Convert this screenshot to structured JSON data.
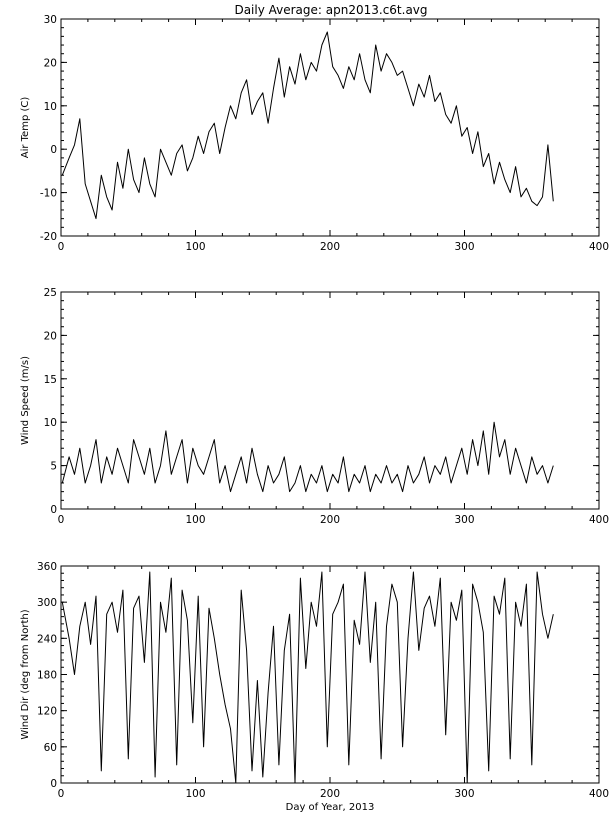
{
  "title": "Daily Average: apn2013.c6t.avg",
  "chart_data": [
    {
      "type": "line",
      "ylabel": "Air Temp (C)",
      "xlim": [
        0,
        400
      ],
      "ylim": [
        -20,
        30
      ],
      "xticks": [
        "0",
        "100",
        "200",
        "300",
        "400"
      ],
      "yticks": [
        "-20",
        "-10",
        "0",
        "10",
        "20",
        "30"
      ],
      "grid": false,
      "x": [
        1,
        6,
        10,
        14,
        18,
        22,
        26,
        30,
        34,
        38,
        42,
        46,
        50,
        54,
        58,
        62,
        66,
        70,
        74,
        78,
        82,
        86,
        90,
        94,
        98,
        102,
        106,
        110,
        114,
        118,
        122,
        126,
        130,
        134,
        138,
        142,
        146,
        150,
        154,
        158,
        162,
        166,
        170,
        174,
        178,
        182,
        186,
        190,
        194,
        198,
        202,
        206,
        210,
        214,
        218,
        222,
        226,
        230,
        234,
        238,
        242,
        246,
        250,
        254,
        258,
        262,
        266,
        270,
        274,
        278,
        282,
        286,
        290,
        294,
        298,
        302,
        306,
        310,
        314,
        318,
        322,
        326,
        330,
        334,
        338,
        342,
        346,
        350,
        354,
        358,
        362,
        366
      ],
      "series": [
        {
          "values": [
            -6,
            -2,
            1,
            7,
            -8,
            -12,
            -16,
            -6,
            -11,
            -14,
            -3,
            -9,
            0,
            -7,
            -10,
            -2,
            -8,
            -11,
            0,
            -3,
            -6,
            -1,
            1,
            -5,
            -2,
            3,
            -1,
            4,
            6,
            -1,
            5,
            10,
            7,
            13,
            16,
            8,
            11,
            13,
            6,
            14,
            21,
            12,
            19,
            15,
            22,
            16,
            20,
            18,
            24,
            27,
            19,
            17,
            14,
            19,
            16,
            22,
            16,
            13,
            24,
            18,
            22,
            20,
            17,
            18,
            14,
            10,
            15,
            12,
            17,
            11,
            13,
            8,
            6,
            10,
            3,
            5,
            -1,
            4,
            -4,
            -1,
            -8,
            -3,
            -7,
            -10,
            -4,
            -11,
            -9,
            -12,
            -13,
            -11,
            1,
            -12
          ]
        }
      ]
    },
    {
      "type": "line",
      "ylabel": "Wind Speed (m/s)",
      "xlim": [
        0,
        400
      ],
      "ylim": [
        0,
        25
      ],
      "xticks": [
        "0",
        "100",
        "200",
        "300",
        "400"
      ],
      "yticks": [
        "0",
        "5",
        "10",
        "15",
        "20",
        "25"
      ],
      "grid": false,
      "x": [
        1,
        6,
        10,
        14,
        18,
        22,
        26,
        30,
        34,
        38,
        42,
        46,
        50,
        54,
        58,
        62,
        66,
        70,
        74,
        78,
        82,
        86,
        90,
        94,
        98,
        102,
        106,
        110,
        114,
        118,
        122,
        126,
        130,
        134,
        138,
        142,
        146,
        150,
        154,
        158,
        162,
        166,
        170,
        174,
        178,
        182,
        186,
        190,
        194,
        198,
        202,
        206,
        210,
        214,
        218,
        222,
        226,
        230,
        234,
        238,
        242,
        246,
        250,
        254,
        258,
        262,
        266,
        270,
        274,
        278,
        282,
        286,
        290,
        294,
        298,
        302,
        306,
        310,
        314,
        318,
        322,
        326,
        330,
        334,
        338,
        342,
        346,
        350,
        354,
        358,
        362,
        366
      ],
      "series": [
        {
          "values": [
            3,
            6,
            4,
            7,
            3,
            5,
            8,
            3,
            6,
            4,
            7,
            5,
            3,
            8,
            6,
            4,
            7,
            3,
            5,
            9,
            4,
            6,
            8,
            3,
            7,
            5,
            4,
            6,
            8,
            3,
            5,
            2,
            4,
            6,
            3,
            7,
            4,
            2,
            5,
            3,
            4,
            6,
            2,
            3,
            5,
            2,
            4,
            3,
            5,
            2,
            4,
            3,
            6,
            2,
            4,
            3,
            5,
            2,
            4,
            3,
            5,
            3,
            4,
            2,
            5,
            3,
            4,
            6,
            3,
            5,
            4,
            6,
            3,
            5,
            7,
            4,
            8,
            5,
            9,
            4,
            10,
            6,
            8,
            4,
            7,
            5,
            3,
            6,
            4,
            5,
            3,
            5
          ]
        }
      ]
    },
    {
      "type": "line",
      "ylabel": "Wind Dir (deg from North)",
      "xlabel": "Day of Year, 2013",
      "xlim": [
        0,
        400
      ],
      "ylim": [
        0,
        360
      ],
      "xticks": [
        "0",
        "100",
        "200",
        "300",
        "400"
      ],
      "yticks": [
        "0",
        "60",
        "120",
        "180",
        "240",
        "300",
        "360"
      ],
      "grid": false,
      "x": [
        1,
        6,
        10,
        14,
        18,
        22,
        26,
        30,
        34,
        38,
        42,
        46,
        50,
        54,
        58,
        62,
        66,
        70,
        74,
        78,
        82,
        86,
        90,
        94,
        98,
        102,
        106,
        110,
        114,
        118,
        122,
        126,
        130,
        134,
        138,
        142,
        146,
        150,
        154,
        158,
        162,
        166,
        170,
        174,
        178,
        182,
        186,
        190,
        194,
        198,
        202,
        206,
        210,
        214,
        218,
        222,
        226,
        230,
        234,
        238,
        242,
        246,
        250,
        254,
        258,
        262,
        266,
        270,
        274,
        278,
        282,
        286,
        290,
        294,
        298,
        302,
        306,
        310,
        314,
        318,
        322,
        326,
        330,
        334,
        338,
        342,
        346,
        350,
        354,
        358,
        362,
        366
      ],
      "series": [
        {
          "values": [
            300,
            240,
            180,
            260,
            300,
            230,
            310,
            20,
            280,
            300,
            250,
            320,
            40,
            290,
            310,
            200,
            350,
            10,
            300,
            250,
            340,
            30,
            320,
            270,
            100,
            310,
            60,
            290,
            240,
            180,
            130,
            90,
            0,
            320,
            220,
            20,
            170,
            10,
            150,
            260,
            30,
            220,
            280,
            0,
            340,
            190,
            300,
            260,
            350,
            60,
            280,
            300,
            330,
            30,
            270,
            230,
            350,
            200,
            300,
            40,
            260,
            330,
            300,
            60,
            240,
            350,
            220,
            290,
            310,
            260,
            340,
            80,
            300,
            270,
            320,
            0,
            330,
            300,
            250,
            20,
            310,
            280,
            340,
            40,
            300,
            260,
            330,
            30,
            350,
            280,
            240,
            280
          ]
        }
      ]
    }
  ]
}
